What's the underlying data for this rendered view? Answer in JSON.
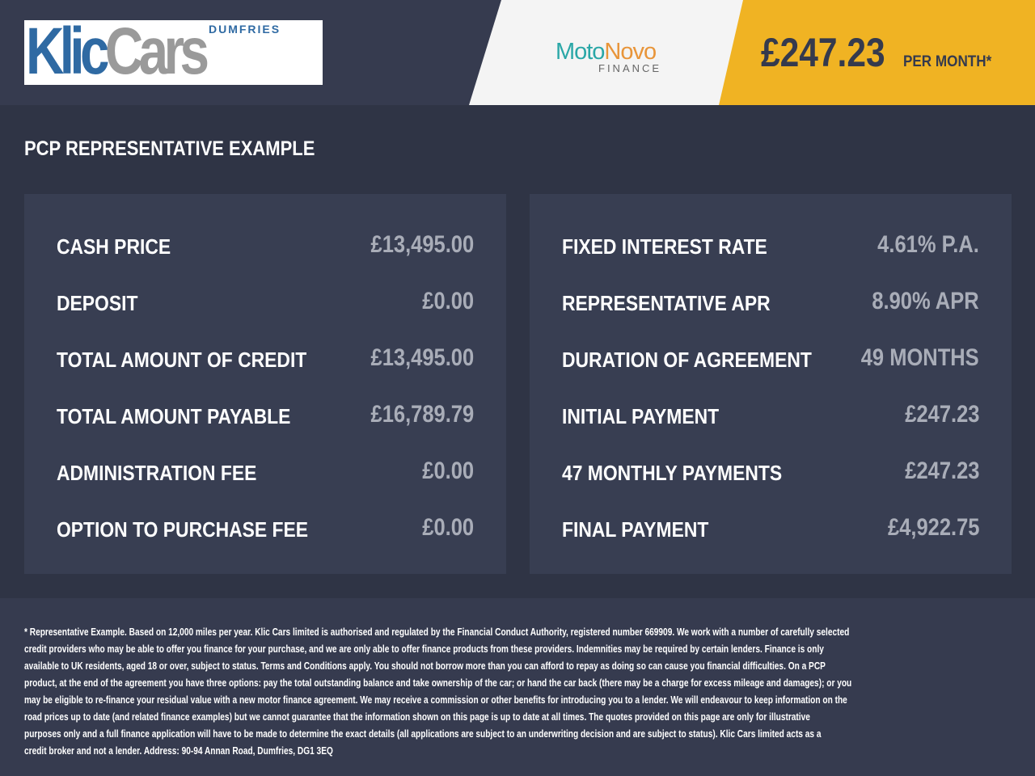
{
  "header": {
    "logo": {
      "main": "Klic",
      "second": "Cars",
      "tag": "DUMFRIES"
    },
    "lender_logo": {
      "moto": "Moto",
      "novo": "Novo",
      "finance": "FINANCE"
    },
    "monthly_price": "£247.23",
    "per_month": "PER MONTH*"
  },
  "section_title": "PCP REPRESENTATIVE EXAMPLE",
  "left_rows": [
    {
      "label": "CASH PRICE",
      "value": "£13,495.00"
    },
    {
      "label": "DEPOSIT",
      "value": "£0.00"
    },
    {
      "label": "TOTAL AMOUNT OF CREDIT",
      "value": "£13,495.00"
    },
    {
      "label": "TOTAL AMOUNT PAYABLE",
      "value": "£16,789.79"
    },
    {
      "label": "ADMINISTRATION FEE",
      "value": "£0.00"
    },
    {
      "label": "OPTION TO PURCHASE FEE",
      "value": "£0.00"
    }
  ],
  "right_rows": [
    {
      "label": "FIXED INTEREST RATE",
      "value": "4.61% P.A."
    },
    {
      "label": "REPRESENTATIVE APR",
      "value": "8.90% APR"
    },
    {
      "label": "DURATION OF AGREEMENT",
      "value": "49 MONTHS"
    },
    {
      "label": "INITIAL PAYMENT",
      "value": "£247.23"
    },
    {
      "label": "47 MONTHLY PAYMENTS",
      "value": "£247.23"
    },
    {
      "label": "FINAL PAYMENT",
      "value": "£4,922.75"
    }
  ],
  "disclaimer_lines": [
    "* Representative Example. Based on 12,000 miles per year. Klic Cars limited is authorised and regulated by the Financial Conduct Authority, registered number 669909. We work with a number of carefully selected",
    "credit providers who may be able to offer you finance for your purchase, and we are only able to offer finance products from these providers. Indemnities may be required by certain lenders. Finance is only",
    "available to UK residents, aged 18 or over, subject to status. Terms and Conditions apply. You should not borrow more than you can afford to repay as doing so can cause you financial difficulties. On a PCP",
    "product, at the end of the agreement you have three options: pay the total outstanding balance and take ownership of the car; or hand the car back (there may be a charge for excess mileage and damages); or you",
    "may be eligible to re-finance your residual value with a new motor finance agreement. We may receive a commission or other benefits for introducing you to a lender. We will endeavour to keep information on the",
    "road prices up to date (and related finance examples) but we cannot guarantee that the information shown on this page is up to date at all times. The quotes provided on this page are only for illustrative",
    "purposes only and a full finance application will have to be made to determine the exact details (all applications are subject to an underwriting decision and are subject to status). Klic Cars limited acts as a",
    "credit broker and not a lender. Address: 90-94 Annan Road, Dumfries, DG1 3EQ"
  ],
  "colors": {
    "accent": "#f0b323",
    "header_bg": "#363b4f",
    "panel_bg": "#383e52",
    "value_text": "#a9adb8"
  }
}
